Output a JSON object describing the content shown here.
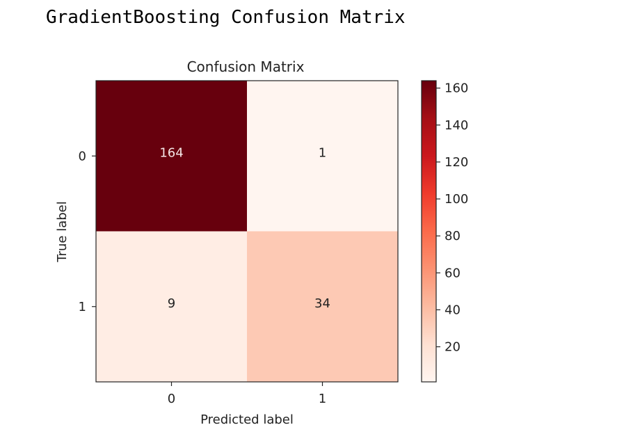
{
  "output_title": "GradientBoosting Confusion Matrix",
  "chart_data": {
    "type": "heatmap",
    "title": "Confusion Matrix",
    "xlabel": "Predicted label",
    "ylabel": "True label",
    "x_categories": [
      "0",
      "1"
    ],
    "y_categories": [
      "0",
      "1"
    ],
    "matrix": [
      [
        164,
        1
      ],
      [
        9,
        34
      ]
    ],
    "colormap": "Reds",
    "colorbar": {
      "min": 1,
      "max": 164,
      "ticks": [
        20,
        40,
        60,
        80,
        100,
        120,
        140,
        160
      ],
      "tick_labels": [
        "20",
        "40",
        "60",
        "80",
        "100",
        "120",
        "140",
        "160"
      ]
    },
    "grid": false
  }
}
